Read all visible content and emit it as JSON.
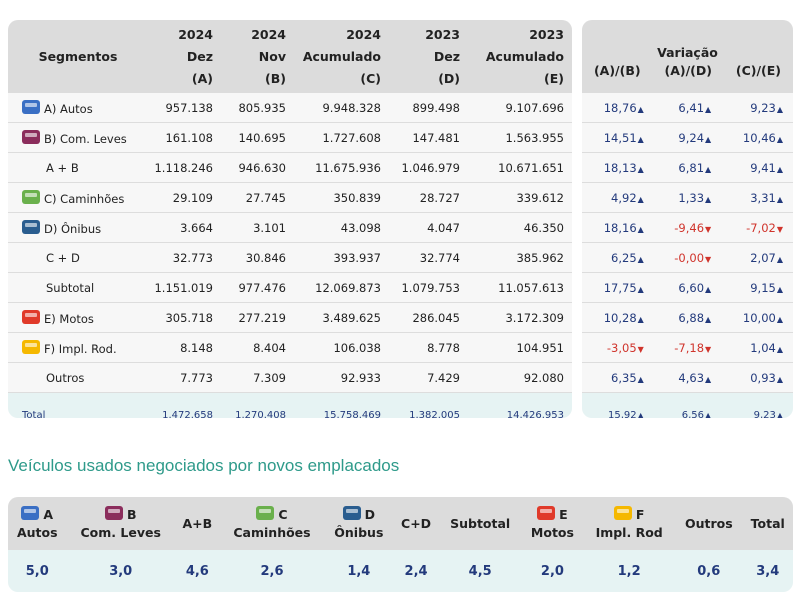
{
  "colors": {
    "autos": "#3a6fc4",
    "com_leves": "#8b2d5c",
    "caminhoes": "#6ab04c",
    "onibus": "#2a5d8f",
    "motos": "#e03a2a",
    "impl_rod": "#f5b800",
    "up": "#233a7c",
    "down": "#d0342c"
  },
  "main": {
    "headers": {
      "segmentos": "Segmentos",
      "a": [
        "2024",
        "Dez",
        "(A)"
      ],
      "b": [
        "2024",
        "Nov",
        "(B)"
      ],
      "c": [
        "2024",
        "Acumulado",
        "(C)"
      ],
      "d": [
        "2023",
        "Dez",
        "(D)"
      ],
      "e": [
        "2023",
        "Acumulado",
        "(E)"
      ]
    },
    "variacao": {
      "title": "Variação",
      "cols": [
        "(A)/(B)",
        "(A)/(D)",
        "(C)/(E)"
      ]
    },
    "rows": [
      {
        "label": "A) Autos",
        "icon": "car-icon",
        "color": "autos",
        "values": [
          "957.138",
          "805.935",
          "9.948.328",
          "899.498",
          "9.107.696"
        ],
        "var": [
          [
            "18,76",
            "up"
          ],
          [
            "6,41",
            "up"
          ],
          [
            "9,23",
            "up"
          ]
        ]
      },
      {
        "label": "B) Com. Leves",
        "icon": "van-icon",
        "color": "com_leves",
        "values": [
          "161.108",
          "140.695",
          "1.727.608",
          "147.481",
          "1.563.955"
        ],
        "var": [
          [
            "14,51",
            "up"
          ],
          [
            "9,24",
            "up"
          ],
          [
            "10,46",
            "up"
          ]
        ]
      },
      {
        "label": "A + B",
        "sub": true,
        "values": [
          "1.118.246",
          "946.630",
          "11.675.936",
          "1.046.979",
          "10.671.651"
        ],
        "var": [
          [
            "18,13",
            "up"
          ],
          [
            "6,81",
            "up"
          ],
          [
            "9,41",
            "up"
          ]
        ]
      },
      {
        "label": "C) Caminhões",
        "icon": "truck-icon",
        "color": "caminhoes",
        "values": [
          "29.109",
          "27.745",
          "350.839",
          "28.727",
          "339.612"
        ],
        "var": [
          [
            "4,92",
            "up"
          ],
          [
            "1,33",
            "up"
          ],
          [
            "3,31",
            "up"
          ]
        ]
      },
      {
        "label": "D) Ônibus",
        "icon": "bus-icon",
        "color": "onibus",
        "values": [
          "3.664",
          "3.101",
          "43.098",
          "4.047",
          "46.350"
        ],
        "var": [
          [
            "18,16",
            "up"
          ],
          [
            "-9,46",
            "down"
          ],
          [
            "-7,02",
            "down"
          ]
        ]
      },
      {
        "label": "C + D",
        "sub": true,
        "values": [
          "32.773",
          "30.846",
          "393.937",
          "32.774",
          "385.962"
        ],
        "var": [
          [
            "6,25",
            "up"
          ],
          [
            "-0,00",
            "down"
          ],
          [
            "2,07",
            "up"
          ]
        ]
      },
      {
        "label": "Subtotal",
        "sub": true,
        "values": [
          "1.151.019",
          "977.476",
          "12.069.873",
          "1.079.753",
          "11.057.613"
        ],
        "var": [
          [
            "17,75",
            "up"
          ],
          [
            "6,60",
            "up"
          ],
          [
            "9,15",
            "up"
          ]
        ]
      },
      {
        "label": "E) Motos",
        "icon": "motorcycle-icon",
        "color": "motos",
        "values": [
          "305.718",
          "277.219",
          "3.489.625",
          "286.045",
          "3.172.309"
        ],
        "var": [
          [
            "10,28",
            "up"
          ],
          [
            "6,88",
            "up"
          ],
          [
            "10,00",
            "up"
          ]
        ]
      },
      {
        "label": "F) Impl. Rod.",
        "icon": "trailer-icon",
        "color": "impl_rod",
        "values": [
          "8.148",
          "8.404",
          "106.038",
          "8.778",
          "104.951"
        ],
        "var": [
          [
            "-3,05",
            "down"
          ],
          [
            "-7,18",
            "down"
          ],
          [
            "1,04",
            "up"
          ]
        ]
      },
      {
        "label": "Outros",
        "sub": true,
        "values": [
          "7.773",
          "7.309",
          "92.933",
          "7.429",
          "92.080"
        ],
        "var": [
          [
            "6,35",
            "up"
          ],
          [
            "4,63",
            "up"
          ],
          [
            "0,93",
            "up"
          ]
        ]
      }
    ],
    "total": {
      "label": "Total",
      "values": [
        "1.472.658",
        "1.270.408",
        "15.758.469",
        "1.382.005",
        "14.426.953"
      ],
      "var": [
        [
          "15,92",
          "up"
        ],
        [
          "6,56",
          "up"
        ],
        [
          "9,23",
          "up"
        ]
      ]
    }
  },
  "usados": {
    "title": "Veículos usados negociados por novos emplacados",
    "cols": [
      {
        "letter": "A",
        "label": "Autos",
        "icon": "car-icon",
        "color": "autos",
        "value": "5,0"
      },
      {
        "letter": "B",
        "label": "Com. Leves",
        "icon": "van-icon",
        "color": "com_leves",
        "value": "3,0"
      },
      {
        "letter": "",
        "label": "A+B",
        "value": "4,6"
      },
      {
        "letter": "C",
        "label": "Caminhões",
        "icon": "truck-icon",
        "color": "caminhoes",
        "value": "2,6"
      },
      {
        "letter": "D",
        "label": "Ônibus",
        "icon": "bus-icon",
        "color": "onibus",
        "value": "1,4"
      },
      {
        "letter": "",
        "label": "C+D",
        "value": "2,4"
      },
      {
        "letter": "",
        "label": "Subtotal",
        "value": "4,5"
      },
      {
        "letter": "E",
        "label": "Motos",
        "icon": "motorcycle-icon",
        "color": "motos",
        "value": "2,0"
      },
      {
        "letter": "F",
        "label": "Impl. Rod",
        "icon": "trailer-icon",
        "color": "impl_rod",
        "value": "1,2"
      },
      {
        "letter": "",
        "label": "Outros",
        "value": "0,6"
      },
      {
        "letter": "",
        "label": "Total",
        "value": "3,4"
      }
    ]
  }
}
